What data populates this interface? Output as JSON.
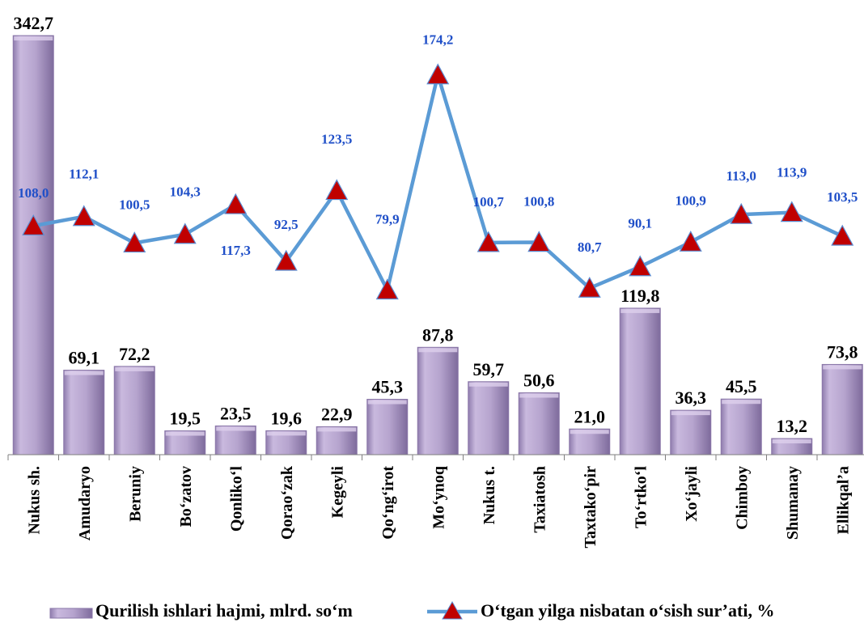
{
  "colors": {
    "bar_fill": "#B8A6D0",
    "bar_dark": "#8A77A8",
    "line": "#5B9BD5",
    "marker": "#C00000",
    "line_label": "#1F4FC8"
  },
  "chart_data": {
    "type": "bar",
    "categories": [
      "Nukus sh.",
      "Amudaryo",
      "Beruniy",
      "Bo‘zatov",
      "Qonliko‘l",
      "Qorao‘zak",
      "Kegeyli",
      "Qo‘ng‘irot",
      "Mo‘ynoq",
      "Nukus t.",
      "Taxiatosh",
      "Taxtako‘pir",
      "To‘rtko‘l",
      "Xo‘jayli",
      "Chimboy",
      "Shumanay",
      "Ellikqal’a"
    ],
    "series": [
      {
        "name": "Qurilish ishlari hajmi, mlrd. so‘m",
        "type": "bar",
        "values": [
          342.7,
          69.1,
          72.2,
          19.5,
          23.5,
          19.6,
          22.9,
          45.3,
          87.8,
          59.7,
          50.6,
          21.0,
          119.8,
          36.3,
          45.5,
          13.2,
          73.8
        ],
        "labels": [
          "342,7",
          "69,1",
          "72,2",
          "19,5",
          "23,5",
          "19,6",
          "22,9",
          "45,3",
          "87,8",
          "59,7",
          "50,6",
          "21,0",
          "119,8",
          "36,3",
          "45,5",
          "13,2",
          "73,8"
        ]
      },
      {
        "name": "O‘tgan yilga nisbatan o‘sish sur’ati, %",
        "type": "line",
        "values": [
          108.0,
          112.1,
          100.5,
          104.3,
          117.3,
          92.5,
          123.5,
          79.9,
          174.2,
          100.7,
          100.8,
          80.7,
          90.1,
          100.9,
          113.0,
          113.9,
          103.5
        ],
        "labels": [
          "108,0",
          "112,1",
          "100,5",
          "104,3",
          "117,3",
          "92,5",
          "123,5",
          "79,9",
          "174,2",
          "100,7",
          "100,8",
          "80,7",
          "90,1",
          "100,9",
          "113,0",
          "113,9",
          "103,5"
        ]
      }
    ],
    "legend_position": "bottom",
    "grid": false
  }
}
